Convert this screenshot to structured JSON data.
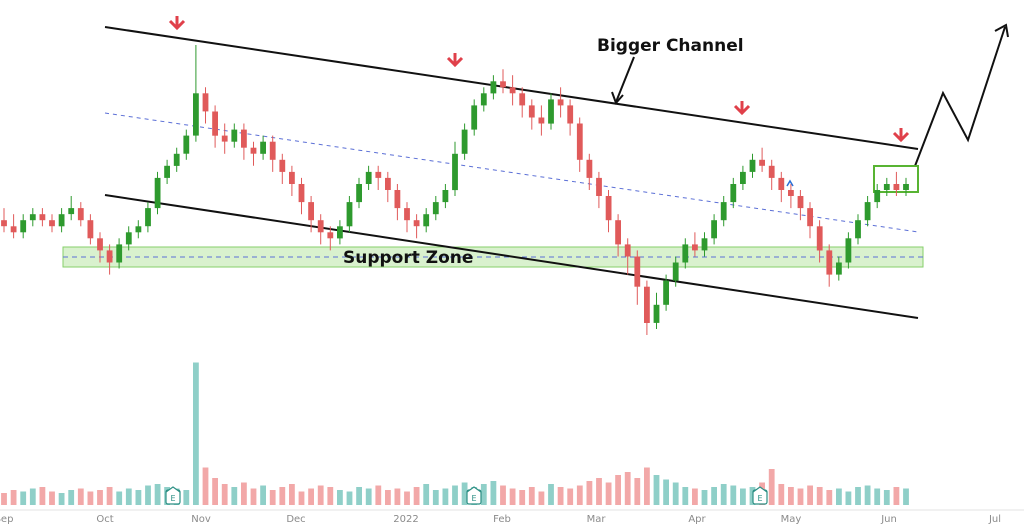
{
  "chart_data": {
    "type": "candlestick",
    "x_ticks": [
      "Sep",
      "Oct",
      "Nov",
      "Dec",
      "2022",
      "Feb",
      "Mar",
      "Apr",
      "May",
      "Jun",
      "Jul"
    ],
    "annotations": {
      "channel_label": "Bigger Channel",
      "support_label": "Support Zone"
    },
    "earnings_marker": "E",
    "colors": {
      "up": "#2e9a2e",
      "down": "#e05a5a",
      "volume_up": "#8fcfc8",
      "volume_down": "#f2a8a8",
      "support_zone": "#b9e6a6",
      "channel": "#111111",
      "midline": "#5b6fd6",
      "arrow": "#e0404a",
      "box": "#58b432"
    },
    "candles": [
      [
        31,
        30,
        33,
        29
      ],
      [
        30,
        29,
        32,
        28
      ],
      [
        29,
        31,
        32,
        28
      ],
      [
        31,
        32,
        33,
        30
      ],
      [
        32,
        31,
        33,
        30
      ],
      [
        31,
        30,
        32,
        29
      ],
      [
        30,
        32,
        33,
        29
      ],
      [
        32,
        33,
        35,
        31
      ],
      [
        33,
        31,
        34,
        30
      ],
      [
        31,
        28,
        32,
        27
      ],
      [
        28,
        26,
        29,
        24
      ],
      [
        26,
        24,
        27,
        22
      ],
      [
        24,
        27,
        28,
        23
      ],
      [
        27,
        29,
        30,
        26
      ],
      [
        29,
        30,
        31,
        28
      ],
      [
        30,
        33,
        34,
        29
      ],
      [
        33,
        38,
        39,
        32
      ],
      [
        38,
        40,
        41,
        37
      ],
      [
        40,
        42,
        43,
        39
      ],
      [
        42,
        45,
        46,
        41
      ],
      [
        45,
        52,
        60,
        44
      ],
      [
        52,
        49,
        53,
        47
      ],
      [
        49,
        45,
        50,
        43
      ],
      [
        45,
        44,
        47,
        42
      ],
      [
        44,
        46,
        47,
        43
      ],
      [
        46,
        43,
        47,
        41
      ],
      [
        43,
        42,
        44,
        40
      ],
      [
        42,
        44,
        45,
        41
      ],
      [
        44,
        41,
        45,
        39
      ],
      [
        41,
        39,
        42,
        37
      ],
      [
        39,
        37,
        40,
        35
      ],
      [
        37,
        34,
        38,
        32
      ],
      [
        34,
        31,
        35,
        29
      ],
      [
        31,
        29,
        32,
        27
      ],
      [
        29,
        28,
        30,
        26
      ],
      [
        28,
        30,
        31,
        27
      ],
      [
        30,
        34,
        35,
        29
      ],
      [
        34,
        37,
        38,
        33
      ],
      [
        37,
        39,
        40,
        36
      ],
      [
        39,
        38,
        40,
        36
      ],
      [
        38,
        36,
        39,
        34
      ],
      [
        36,
        33,
        37,
        31
      ],
      [
        33,
        31,
        34,
        29
      ],
      [
        31,
        30,
        32,
        28
      ],
      [
        30,
        32,
        33,
        29
      ],
      [
        32,
        34,
        35,
        31
      ],
      [
        34,
        36,
        37,
        33
      ],
      [
        36,
        42,
        44,
        35
      ],
      [
        42,
        46,
        47,
        41
      ],
      [
        46,
        50,
        51,
        45
      ],
      [
        50,
        52,
        53,
        49
      ],
      [
        52,
        54,
        55,
        51
      ],
      [
        54,
        53,
        56,
        52
      ],
      [
        53,
        52,
        55,
        50
      ],
      [
        52,
        50,
        53,
        48
      ],
      [
        50,
        48,
        51,
        46
      ],
      [
        48,
        47,
        50,
        45
      ],
      [
        47,
        51,
        52,
        46
      ],
      [
        51,
        50,
        53,
        48
      ],
      [
        50,
        47,
        51,
        45
      ],
      [
        47,
        41,
        48,
        39
      ],
      [
        41,
        38,
        42,
        36
      ],
      [
        38,
        35,
        39,
        33
      ],
      [
        35,
        31,
        36,
        29
      ],
      [
        31,
        27,
        32,
        25
      ],
      [
        27,
        25,
        28,
        22
      ],
      [
        25,
        20,
        26,
        17
      ],
      [
        20,
        14,
        21,
        12
      ],
      [
        14,
        17,
        19,
        13
      ],
      [
        17,
        21,
        22,
        16
      ],
      [
        21,
        24,
        25,
        20
      ],
      [
        24,
        27,
        28,
        23
      ],
      [
        27,
        26,
        29,
        25
      ],
      [
        26,
        28,
        29,
        25
      ],
      [
        28,
        31,
        32,
        27
      ],
      [
        31,
        34,
        35,
        30
      ],
      [
        34,
        37,
        38,
        33
      ],
      [
        37,
        39,
        40,
        36
      ],
      [
        39,
        41,
        42,
        38
      ],
      [
        41,
        40,
        43,
        39
      ],
      [
        40,
        38,
        41,
        36
      ],
      [
        38,
        36,
        39,
        34
      ],
      [
        36,
        35,
        37,
        33
      ],
      [
        35,
        33,
        36,
        31
      ],
      [
        33,
        30,
        34,
        28
      ],
      [
        30,
        26,
        31,
        24
      ],
      [
        26,
        22,
        27,
        20
      ],
      [
        22,
        24,
        25,
        21
      ],
      [
        24,
        28,
        29,
        23
      ],
      [
        28,
        31,
        32,
        27
      ],
      [
        31,
        34,
        35,
        30
      ],
      [
        34,
        36,
        37,
        33
      ],
      [
        36,
        37,
        38,
        35
      ],
      [
        37,
        36,
        39,
        35
      ],
      [
        36,
        37,
        38,
        35
      ]
    ],
    "volume": [
      8,
      10,
      9,
      11,
      12,
      9,
      8,
      10,
      11,
      9,
      10,
      12,
      9,
      11,
      10,
      13,
      14,
      12,
      11,
      10,
      95,
      25,
      18,
      14,
      12,
      15,
      11,
      13,
      10,
      12,
      14,
      9,
      11,
      13,
      12,
      10,
      9,
      12,
      11,
      13,
      10,
      11,
      9,
      12,
      14,
      10,
      11,
      13,
      15,
      12,
      14,
      16,
      13,
      11,
      10,
      12,
      9,
      14,
      12,
      11,
      13,
      16,
      18,
      15,
      20,
      22,
      18,
      25,
      20,
      17,
      15,
      12,
      11,
      10,
      12,
      14,
      13,
      11,
      12,
      15,
      24,
      14,
      12,
      11,
      13,
      12,
      10,
      11,
      9,
      12,
      13,
      11,
      10,
      12,
      11
    ]
  }
}
